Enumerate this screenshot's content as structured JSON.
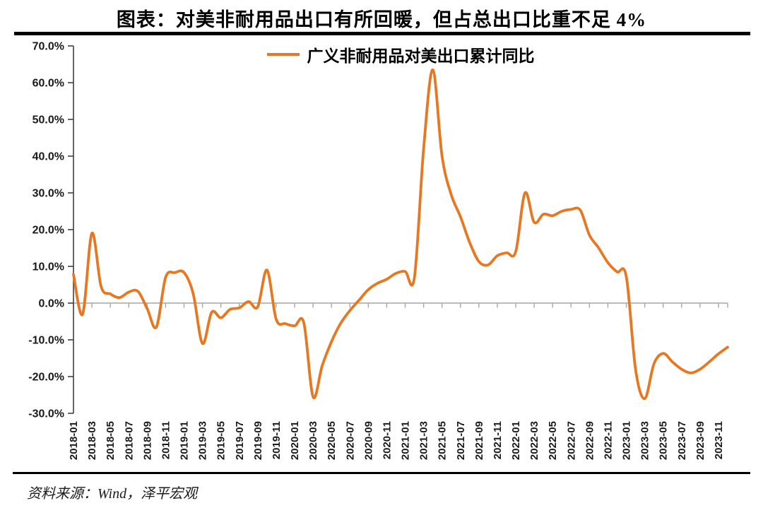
{
  "title": "图表：对美非耐用品出口有所回暖，但占总出口比重不足 4%",
  "source": "资料来源：Wind，泽平宏观",
  "colors": {
    "accent": "#E87722",
    "axis": "#3f3f3f",
    "grid": "#A6A6A6",
    "rule": "#000000",
    "text": "#1a1a1a"
  },
  "chart_data": {
    "type": "line",
    "title": "图表：对美非耐用品出口有所回暖，但占总出口比重不足 4%",
    "legend_position": "top-center",
    "grid": "zero-line-only",
    "ylim": [
      -30,
      70
    ],
    "ytick_step": 10,
    "y_ticks": [
      "70.0%",
      "60.0%",
      "50.0%",
      "40.0%",
      "30.0%",
      "20.0%",
      "10.0%",
      "0.0%",
      "-10.0%",
      "-20.0%",
      "-30.0%"
    ],
    "xtick_every": 2,
    "x": [
      "2018-01",
      "2018-02",
      "2018-03",
      "2018-04",
      "2018-05",
      "2018-06",
      "2018-07",
      "2018-08",
      "2018-09",
      "2018-10",
      "2018-11",
      "2018-12",
      "2019-01",
      "2019-02",
      "2019-03",
      "2019-04",
      "2019-05",
      "2019-06",
      "2019-07",
      "2019-08",
      "2019-09",
      "2019-10",
      "2019-11",
      "2019-12",
      "2020-01",
      "2020-02",
      "2020-03",
      "2020-04",
      "2020-05",
      "2020-06",
      "2020-07",
      "2020-08",
      "2020-09",
      "2020-10",
      "2020-11",
      "2020-12",
      "2021-01",
      "2021-02",
      "2021-03",
      "2021-04",
      "2021-05",
      "2021-06",
      "2021-07",
      "2021-08",
      "2021-09",
      "2021-10",
      "2021-11",
      "2021-12",
      "2022-01",
      "2022-02",
      "2022-03",
      "2022-04",
      "2022-05",
      "2022-06",
      "2022-07",
      "2022-08",
      "2022-09",
      "2022-10",
      "2022-11",
      "2022-12",
      "2023-01",
      "2023-02",
      "2023-03",
      "2023-04",
      "2023-05",
      "2023-06",
      "2023-07",
      "2023-08",
      "2023-09",
      "2023-10",
      "2023-11",
      "2023-12"
    ],
    "series": [
      {
        "name": "广义非耐用品对美出口累计同比",
        "color": "#E87722",
        "unit": "%",
        "values": [
          7.8,
          -3,
          19,
          4.5,
          2.5,
          1.5,
          3,
          3.2,
          -1.5,
          -6.5,
          7,
          8.3,
          8.3,
          2.5,
          -11,
          -2.5,
          -4,
          -1.7,
          -1.3,
          0.4,
          -1,
          9,
          -4.4,
          -5.6,
          -6.2,
          -5.4,
          -25.5,
          -17,
          -10.5,
          -5.5,
          -2,
          0.8,
          3.7,
          5.4,
          6.5,
          8.1,
          8.6,
          7.0,
          42,
          63.5,
          40,
          29.5,
          23.5,
          16.5,
          11.3,
          10.4,
          12.9,
          13.7,
          14,
          30,
          22,
          24.2,
          23.8,
          25,
          25.5,
          25.3,
          18.5,
          15,
          11,
          8.5,
          7.2,
          -18,
          -26,
          -16.5,
          -13.7,
          -16,
          -18,
          -19,
          -18,
          -16,
          -13.8,
          -12
        ]
      }
    ]
  }
}
